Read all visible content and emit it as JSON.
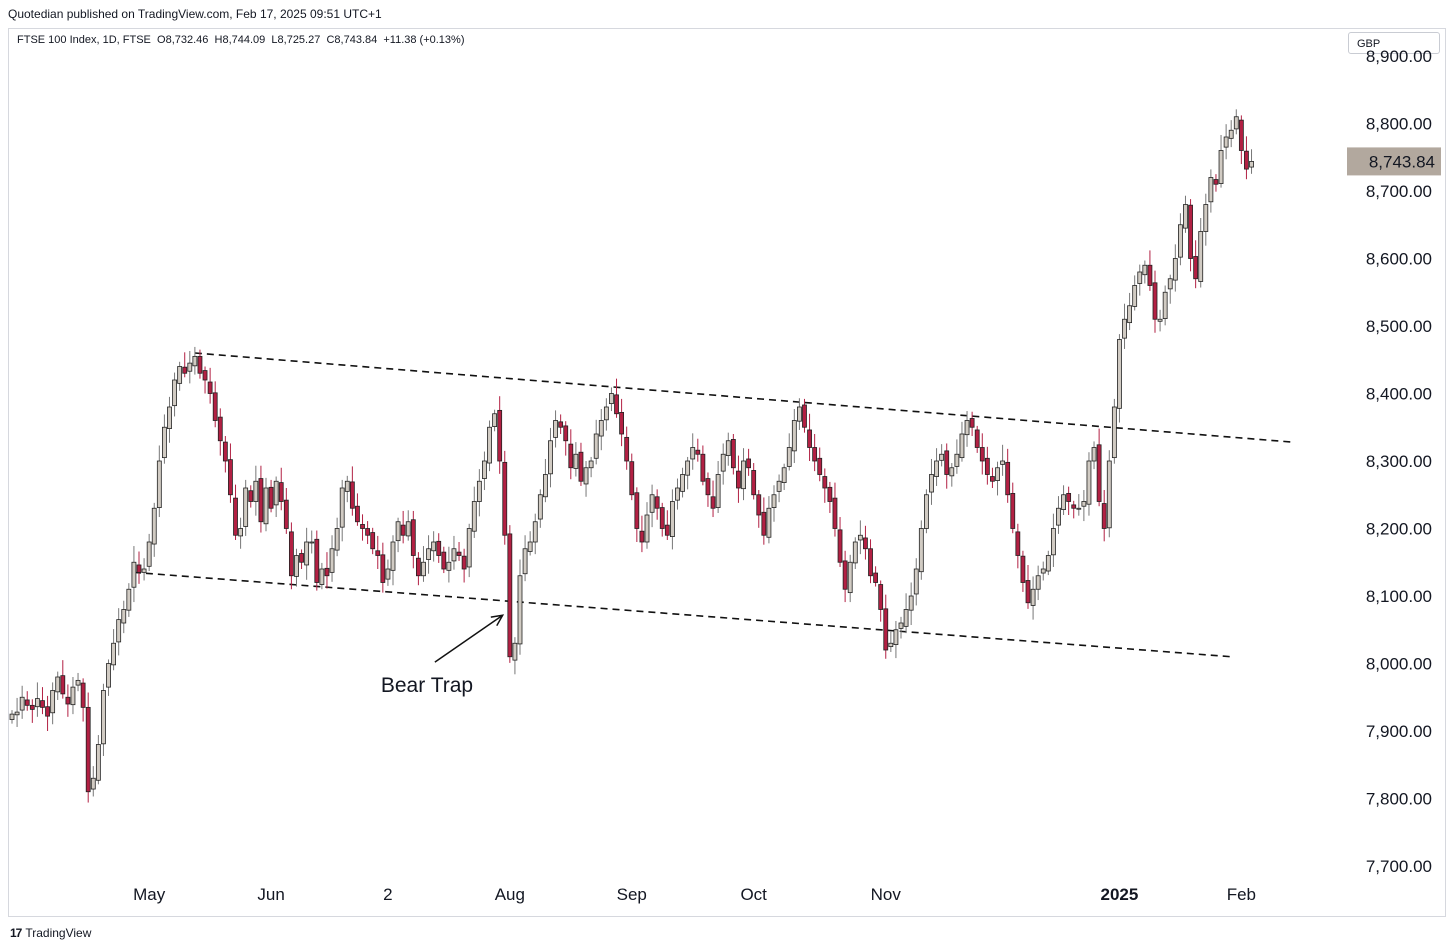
{
  "publisher_line": "Quotedian published on TradingView.com, Feb 17, 2025 09:51 UTC+1",
  "legend": {
    "symbol": "FTSE 100 Index, 1D, FTSE",
    "open": "O8,732.46",
    "high": "H8,744.09",
    "low": "L8,725.27",
    "close": "C8,743.84",
    "change": "+11.38 (+0.13%)"
  },
  "currency": "GBP",
  "footer": {
    "brand": "TradingView",
    "logo": "17"
  },
  "colors": {
    "up_fill": "#d1cbc3",
    "down_fill": "#b22043",
    "wick": "#555555",
    "last_price_bg": "#b2a89e"
  },
  "chart_data": {
    "type": "candlestick",
    "symbol": "FTSE 100 Index",
    "interval": "1D",
    "ylim": [
      7700,
      8900
    ],
    "y_ticks": [
      "7,700.00",
      "7,800.00",
      "7,900.00",
      "8,000.00",
      "8,100.00",
      "8,200.00",
      "8,300.00",
      "8,400.00",
      "8,500.00",
      "8,600.00",
      "8,700.00",
      "8,800.00",
      "8,900.00"
    ],
    "x_ticks": [
      {
        "label": "May",
        "index": 27
      },
      {
        "label": "Jun",
        "index": 51
      },
      {
        "label": "2",
        "index": 74
      },
      {
        "label": "Aug",
        "index": 98
      },
      {
        "label": "Sep",
        "index": 122
      },
      {
        "label": "Oct",
        "index": 146
      },
      {
        "label": "Nov",
        "index": 172
      },
      {
        "label": "2025",
        "index": 218,
        "bold": true
      },
      {
        "label": "Feb",
        "index": 242
      }
    ],
    "last_price": 8743.84,
    "last_price_label": "8,743.84",
    "closes": [
      7925,
      7928,
      7950,
      7938,
      7932,
      7948,
      7935,
      7922,
      7960,
      7980,
      7955,
      7940,
      7965,
      7975,
      7935,
      7810,
      7830,
      7880,
      7960,
      8000,
      8030,
      8065,
      8080,
      8110,
      8150,
      8135,
      8140,
      8180,
      8230,
      8300,
      8350,
      8380,
      8420,
      8440,
      8430,
      8445,
      8455,
      8430,
      8420,
      8400,
      8360,
      8330,
      8300,
      8250,
      8190,
      8200,
      8260,
      8240,
      8270,
      8210,
      8260,
      8230,
      8270,
      8240,
      8200,
      8130,
      8160,
      8150,
      8180,
      8180,
      8120,
      8140,
      8130,
      8170,
      8200,
      8260,
      8270,
      8230,
      8210,
      8200,
      8190,
      8170,
      8160,
      8120,
      8140,
      8180,
      8210,
      8190,
      8210,
      8160,
      8130,
      8150,
      8170,
      8180,
      8160,
      8140,
      8150,
      8170,
      8160,
      8140,
      8200,
      8240,
      8270,
      8300,
      8350,
      8370,
      8300,
      8190,
      8010,
      8030,
      8130,
      8170,
      8180,
      8210,
      8250,
      8280,
      8330,
      8360,
      8350,
      8330,
      8290,
      8310,
      8270,
      8290,
      8300,
      8340,
      8360,
      8380,
      8400,
      8370,
      8340,
      8300,
      8250,
      8200,
      8180,
      8220,
      8250,
      8230,
      8200,
      8190,
      8240,
      8260,
      8280,
      8300,
      8320,
      8310,
      8270,
      8250,
      8230,
      8280,
      8310,
      8330,
      8290,
      8260,
      8300,
      8290,
      8250,
      8220,
      8190,
      8230,
      8250,
      8270,
      8290,
      8320,
      8360,
      8380,
      8350,
      8320,
      8300,
      8280,
      8260,
      8240,
      8200,
      8150,
      8110,
      8150,
      8180,
      8190,
      8170,
      8130,
      8120,
      8080,
      8020,
      8030,
      8050,
      8060,
      8080,
      8100,
      8140,
      8200,
      8250,
      8280,
      8300,
      8310,
      8280,
      8290,
      8310,
      8340,
      8360,
      8350,
      8320,
      8300,
      8280,
      8270,
      8290,
      8300,
      8250,
      8200,
      8160,
      8120,
      8090,
      8110,
      8130,
      8140,
      8160,
      8200,
      8230,
      8250,
      8240,
      8230,
      8230,
      8240,
      8300,
      8320,
      8240,
      8200,
      8300,
      8380,
      8480,
      8510,
      8530,
      8560,
      8580,
      8590,
      8560,
      8510,
      8510,
      8550,
      8570,
      8600,
      8650,
      8680,
      8600,
      8570,
      8640,
      8680,
      8720,
      8710,
      8760,
      8780,
      8790,
      8810,
      8760,
      8732.46,
      8743.84
    ],
    "annotations": [
      {
        "text": "Bear Trap",
        "type": "arrow",
        "from_index": 86,
        "from_price": 8005,
        "to_index": 96,
        "to_price": 8070
      }
    ],
    "trendlines": [
      {
        "style": "dashed",
        "from_index": 36,
        "from_price": 8460,
        "to_index": 252,
        "to_price": 8328
      },
      {
        "style": "dashed",
        "from_index": 24,
        "from_price": 8135,
        "to_index": 240,
        "to_price": 8010
      }
    ]
  }
}
